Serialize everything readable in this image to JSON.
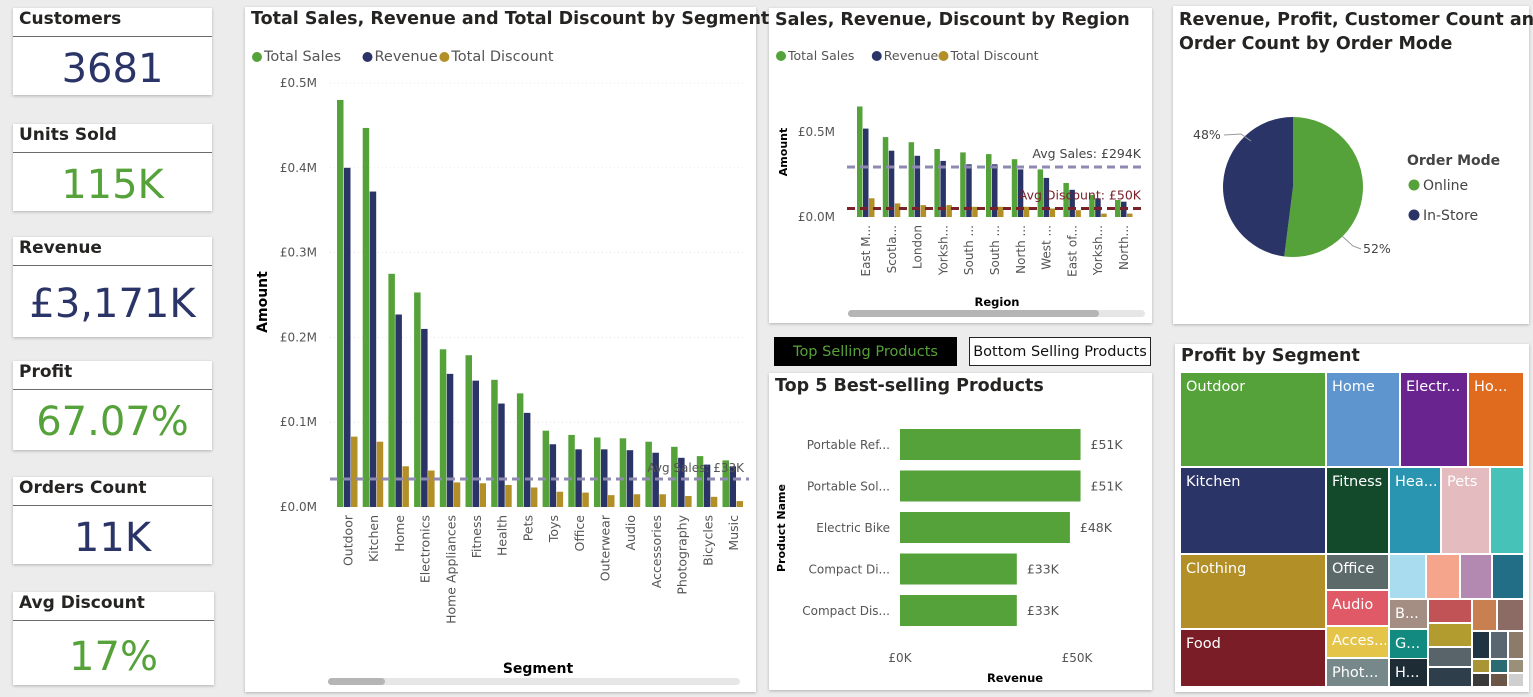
{
  "colors": {
    "sales": "#56a23a",
    "revenue": "#2b3467",
    "discount": "#b38f28",
    "avg_sales_line": "#8e8ab0",
    "avg_disc_line": "#7a2029",
    "navy": "#2b3467",
    "green": "#56a23a"
  },
  "kpis": [
    {
      "title": "Customers",
      "value": "3681",
      "color": "#2b3467"
    },
    {
      "title": "Units Sold",
      "value": "115K",
      "color": "#56a23a"
    },
    {
      "title": "Revenue",
      "value": "£3,171K",
      "color": "#2b3467"
    },
    {
      "title": "Profit",
      "value": "67.07%",
      "color": "#56a23a"
    },
    {
      "title": "Orders Count",
      "value": "11K",
      "color": "#2b3467"
    },
    {
      "title": "Avg Discount",
      "value": "17%",
      "color": "#56a23a"
    }
  ],
  "segment_chart": {
    "title": "Total Sales, Revenue and Total Discount by Segment",
    "legend": [
      "Total Sales",
      "Revenue",
      "Total Discount"
    ],
    "xlabel": "Segment",
    "ylabel": "Amount",
    "yticks": [
      "£0.0M",
      "£0.1M",
      "£0.2M",
      "£0.3M",
      "£0.4M",
      "£0.5M"
    ],
    "avg_label": "Avg Sales: £33K",
    "chart_data": {
      "type": "bar",
      "categories": [
        "Outdoor",
        "Kitchen",
        "Home",
        "Electronics",
        "Home Appliances",
        "Fitness",
        "Health",
        "Pets",
        "Toys",
        "Office",
        "Outerwear",
        "Audio",
        "Accessories",
        "Photography",
        "Bicycles",
        "Music"
      ],
      "series": [
        {
          "name": "Total Sales",
          "values": [
            0.48,
            0.447,
            0.275,
            0.253,
            0.186,
            0.179,
            0.15,
            0.134,
            0.09,
            0.085,
            0.082,
            0.081,
            0.077,
            0.071,
            0.06,
            0.055
          ]
        },
        {
          "name": "Revenue",
          "values": [
            0.4,
            0.372,
            0.227,
            0.21,
            0.157,
            0.149,
            0.122,
            0.111,
            0.074,
            0.068,
            0.068,
            0.067,
            0.064,
            0.058,
            0.05,
            0.048
          ]
        },
        {
          "name": "Total Discount",
          "values": [
            0.083,
            0.077,
            0.048,
            0.043,
            0.029,
            0.028,
            0.026,
            0.023,
            0.018,
            0.017,
            0.014,
            0.015,
            0.015,
            0.013,
            0.012,
            0.007
          ]
        }
      ],
      "ylim": [
        0,
        0.5
      ],
      "avg_sales": 0.033
    }
  },
  "region_chart": {
    "title": "Sales, Revenue, Discount by Region",
    "legend": [
      "Total Sales",
      "Revenue",
      "Total Discount"
    ],
    "xlabel": "Region",
    "ylabel": "Amount",
    "yticks": [
      "£0.0M",
      "£0.5M"
    ],
    "avg_sales_label": "Avg Sales: £294K",
    "avg_disc_label": "Avg Discount: £50K",
    "chart_data": {
      "type": "bar",
      "categories": [
        "East M...",
        "Scotla...",
        "London",
        "Yorksh...",
        "South ...",
        "South ...",
        "North ...",
        "West ...",
        "East of...",
        "Yorksh...",
        "North..."
      ],
      "series": [
        {
          "name": "Total Sales",
          "values": [
            0.65,
            0.47,
            0.44,
            0.4,
            0.38,
            0.37,
            0.34,
            0.28,
            0.2,
            0.13,
            0.1
          ]
        },
        {
          "name": "Revenue",
          "values": [
            0.52,
            0.39,
            0.36,
            0.33,
            0.31,
            0.31,
            0.28,
            0.23,
            0.16,
            0.11,
            0.09
          ]
        },
        {
          "name": "Total Discount",
          "values": [
            0.11,
            0.08,
            0.07,
            0.07,
            0.06,
            0.06,
            0.06,
            0.05,
            0.04,
            0.02,
            0.02
          ]
        }
      ],
      "avg_sales": 0.294,
      "avg_discount": 0.05
    }
  },
  "order_mode_chart": {
    "title_line1": "Revenue, Profit, Customer Count and",
    "title_line2": "Order Count by Order Mode",
    "legend_title": "Order Mode",
    "chart_data": {
      "type": "pie",
      "labels": [
        "Online",
        "In-Store"
      ],
      "values": [
        52,
        48
      ],
      "colors": [
        "#56a23a",
        "#2b3467"
      ],
      "label_text": [
        "52%",
        "48%"
      ]
    }
  },
  "tabs": {
    "top": "Top Selling Products",
    "bottom": "Bottom Selling Products"
  },
  "top_products_chart": {
    "title": "Top 5 Best-selling Products",
    "xlabel": "Revenue",
    "ylabel": "Product Name",
    "xticks": [
      "£0K",
      "£50K"
    ],
    "chart_data": {
      "type": "bar",
      "orientation": "horizontal",
      "categories": [
        "Portable Ref...",
        "Portable Sol...",
        "Electric Bike",
        "Compact Di...",
        "Compact Dis..."
      ],
      "values": [
        51,
        51,
        48,
        33,
        33
      ],
      "value_labels": [
        "£51K",
        "£51K",
        "£48K",
        "£33K",
        "£33K"
      ],
      "xlim": [
        0,
        50
      ]
    }
  },
  "profit_treemap": {
    "title": "Profit by Segment",
    "tiles": [
      {
        "label": "Outdoor",
        "color": "#56a23a"
      },
      {
        "label": "Kitchen",
        "color": "#2b3467"
      },
      {
        "label": "Clothing",
        "color": "#b38f28"
      },
      {
        "label": "Food",
        "color": "#7a1d27"
      },
      {
        "label": "Home",
        "color": "#5e95cf"
      },
      {
        "label": "Electr...",
        "color": "#6a2490"
      },
      {
        "label": "Ho...",
        "color": "#e06b1f"
      },
      {
        "label": "Fitness",
        "color": "#134a2c"
      },
      {
        "label": "Hea...",
        "color": "#2a95b0"
      },
      {
        "label": "Pets",
        "color": "#e4bcc0"
      },
      {
        "label": "Office",
        "color": "#5d6a6a"
      },
      {
        "label": "Audio",
        "color": "#df5a66"
      },
      {
        "label": "Acces...",
        "color": "#e5c44a"
      },
      {
        "label": "Phot...",
        "color": "#77888a"
      },
      {
        "label": "B...",
        "color": "#a48e84"
      },
      {
        "label": "G...",
        "color": "#138a7f"
      },
      {
        "label": "H...",
        "color": "#1e2d35"
      }
    ]
  }
}
